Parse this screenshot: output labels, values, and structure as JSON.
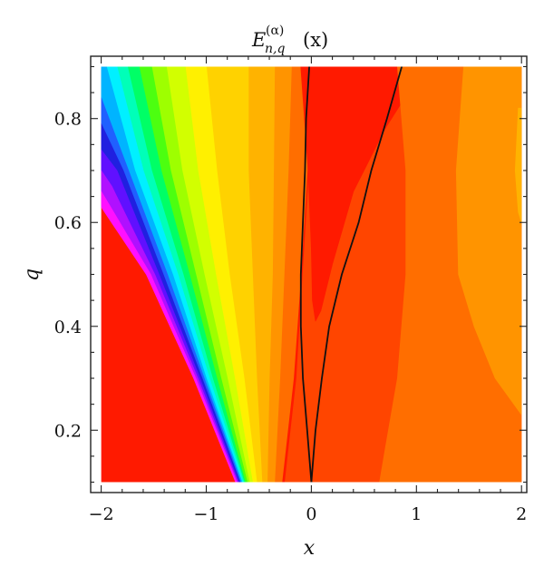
{
  "chart_data": {
    "type": "heatmap",
    "subtype": "filled contour plot with overlaid black contour lines",
    "title": {
      "base": "E",
      "superscript": "(α)",
      "subscript": "n,q",
      "argument": "(x)"
    },
    "xlabel": "x",
    "ylabel": "q",
    "xlim": [
      -2,
      2
    ],
    "ylim": [
      0.1,
      0.9
    ],
    "frame_range": {
      "x": [
        -2.1,
        2.05
      ],
      "y": [
        0.08,
        0.92
      ]
    },
    "x_ticks": [
      {
        "value": -2,
        "label": "−2"
      },
      {
        "value": -1,
        "label": "−1"
      },
      {
        "value": 0,
        "label": "0"
      },
      {
        "value": 1,
        "label": "1"
      },
      {
        "value": 2,
        "label": "2"
      }
    ],
    "y_ticks": [
      {
        "value": 0.2,
        "label": "0.2"
      },
      {
        "value": 0.4,
        "label": "0.4"
      },
      {
        "value": 0.6,
        "label": "0.6"
      },
      {
        "value": 0.8,
        "label": "0.8"
      }
    ],
    "background_color": "#ff1a00",
    "palette": [
      "#ff1a00",
      "#ff4500",
      "#ff6e00",
      "#ff9400",
      "#ffb300",
      "#ffd200",
      "#fff000",
      "#d2ff00",
      "#9eff00",
      "#4cff10",
      "#00ff66",
      "#00ffb8",
      "#00f0ff",
      "#00b4ff",
      "#2060ff",
      "#2020e0",
      "#6010ff",
      "#b010ff",
      "#ff10ff"
    ],
    "regions": [
      {
        "color": "#ff4500",
        "points": [
          [
            -0.25,
            0.1
          ],
          [
            -0.14,
            0.3
          ],
          [
            -0.08,
            0.5
          ],
          [
            -0.02,
            0.7
          ],
          [
            0.02,
            0.9
          ],
          [
            2,
            0.9
          ],
          [
            2,
            0.1
          ]
        ]
      },
      {
        "color": "#ff6e00",
        "points": [
          [
            -0.35,
            0.1
          ],
          [
            -0.3,
            0.3
          ],
          [
            -0.26,
            0.5
          ],
          [
            -0.22,
            0.7
          ],
          [
            -0.19,
            0.9
          ],
          [
            -0.02,
            0.9
          ],
          [
            -0.04,
            0.7
          ],
          [
            -0.1,
            0.5
          ],
          [
            -0.17,
            0.3
          ],
          [
            -0.28,
            0.1
          ]
        ]
      },
      {
        "color": "#ff9400",
        "points": [
          [
            -0.42,
            0.1
          ],
          [
            -0.4,
            0.3
          ],
          [
            -0.37,
            0.5
          ],
          [
            -0.36,
            0.7
          ],
          [
            -0.35,
            0.9
          ],
          [
            -0.19,
            0.9
          ],
          [
            -0.22,
            0.7
          ],
          [
            -0.26,
            0.5
          ],
          [
            -0.3,
            0.3
          ],
          [
            -0.35,
            0.1
          ]
        ]
      },
      {
        "color": "#ffb300",
        "points": [
          [
            -0.47,
            0.1
          ],
          [
            -0.52,
            0.3
          ],
          [
            -0.56,
            0.5
          ],
          [
            -0.6,
            0.7
          ],
          [
            -0.6,
            0.9
          ],
          [
            -0.35,
            0.9
          ],
          [
            -0.36,
            0.7
          ],
          [
            -0.37,
            0.5
          ],
          [
            -0.4,
            0.3
          ],
          [
            -0.42,
            0.1
          ]
        ]
      },
      {
        "color": "#ffd200",
        "points": [
          [
            -0.52,
            0.1
          ],
          [
            -0.64,
            0.3
          ],
          [
            -0.78,
            0.5
          ],
          [
            -0.9,
            0.7
          ],
          [
            -1.0,
            0.9
          ],
          [
            -0.6,
            0.9
          ],
          [
            -0.6,
            0.7
          ],
          [
            -0.56,
            0.5
          ],
          [
            -0.52,
            0.3
          ],
          [
            -0.47,
            0.1
          ]
        ]
      },
      {
        "color": "#fff000",
        "points": [
          [
            -0.56,
            0.1
          ],
          [
            -0.73,
            0.3
          ],
          [
            -0.91,
            0.5
          ],
          [
            -1.08,
            0.7
          ],
          [
            -1.2,
            0.9
          ],
          [
            -1.0,
            0.9
          ],
          [
            -0.9,
            0.7
          ],
          [
            -0.78,
            0.5
          ],
          [
            -0.64,
            0.3
          ],
          [
            -0.52,
            0.1
          ]
        ]
      },
      {
        "color": "#d2ff00",
        "points": [
          [
            -0.59,
            0.1
          ],
          [
            -0.8,
            0.3
          ],
          [
            -1.02,
            0.5
          ],
          [
            -1.23,
            0.7
          ],
          [
            -1.38,
            0.9
          ],
          [
            -1.2,
            0.9
          ],
          [
            -1.08,
            0.7
          ],
          [
            -0.91,
            0.5
          ],
          [
            -0.73,
            0.3
          ],
          [
            -0.56,
            0.1
          ]
        ]
      },
      {
        "color": "#9eff00",
        "points": [
          [
            -0.61,
            0.1
          ],
          [
            -0.86,
            0.3
          ],
          [
            -1.1,
            0.5
          ],
          [
            -1.34,
            0.7
          ],
          [
            -1.52,
            0.9
          ],
          [
            -1.38,
            0.9
          ],
          [
            -1.23,
            0.7
          ],
          [
            -1.02,
            0.5
          ],
          [
            -0.8,
            0.3
          ],
          [
            -0.59,
            0.1
          ]
        ]
      },
      {
        "color": "#4cff10",
        "points": [
          [
            -0.63,
            0.1
          ],
          [
            -0.9,
            0.3
          ],
          [
            -1.16,
            0.5
          ],
          [
            -1.43,
            0.7
          ],
          [
            -1.64,
            0.9
          ],
          [
            -1.52,
            0.9
          ],
          [
            -1.34,
            0.7
          ],
          [
            -1.1,
            0.5
          ],
          [
            -0.86,
            0.3
          ],
          [
            -0.61,
            0.1
          ]
        ]
      },
      {
        "color": "#00ff66",
        "points": [
          [
            -0.64,
            0.1
          ],
          [
            -0.94,
            0.3
          ],
          [
            -1.22,
            0.5
          ],
          [
            -1.52,
            0.7
          ],
          [
            -1.75,
            0.9
          ],
          [
            -1.64,
            0.9
          ],
          [
            -1.43,
            0.7
          ],
          [
            -1.16,
            0.5
          ],
          [
            -0.9,
            0.3
          ],
          [
            -0.63,
            0.1
          ]
        ]
      },
      {
        "color": "#00ffb8",
        "points": [
          [
            -0.65,
            0.1
          ],
          [
            -0.97,
            0.3
          ],
          [
            -1.27,
            0.5
          ],
          [
            -1.6,
            0.7
          ],
          [
            -1.85,
            0.9
          ],
          [
            -1.75,
            0.9
          ],
          [
            -1.52,
            0.7
          ],
          [
            -1.22,
            0.5
          ],
          [
            -0.94,
            0.3
          ],
          [
            -0.64,
            0.1
          ]
        ]
      },
      {
        "color": "#00f0ff",
        "points": [
          [
            -0.66,
            0.1
          ],
          [
            -1.0,
            0.3
          ],
          [
            -1.32,
            0.5
          ],
          [
            -1.68,
            0.7
          ],
          [
            -1.95,
            0.9
          ],
          [
            -1.85,
            0.9
          ],
          [
            -1.6,
            0.7
          ],
          [
            -1.27,
            0.5
          ],
          [
            -0.97,
            0.3
          ],
          [
            -0.65,
            0.1
          ]
        ]
      },
      {
        "color": "#00b4ff",
        "points": [
          [
            -0.67,
            0.1
          ],
          [
            -1.02,
            0.3
          ],
          [
            -1.37,
            0.5
          ],
          [
            -1.74,
            0.7
          ],
          [
            -2,
            0.84
          ],
          [
            -2,
            0.9
          ],
          [
            -1.95,
            0.9
          ],
          [
            -1.68,
            0.7
          ],
          [
            -1.32,
            0.5
          ],
          [
            -1.0,
            0.3
          ],
          [
            -0.66,
            0.1
          ]
        ]
      },
      {
        "color": "#2060ff",
        "points": [
          [
            -0.68,
            0.1
          ],
          [
            -1.04,
            0.3
          ],
          [
            -1.41,
            0.5
          ],
          [
            -1.79,
            0.7
          ],
          [
            -2,
            0.79
          ],
          [
            -2,
            0.84
          ],
          [
            -1.74,
            0.7
          ],
          [
            -1.37,
            0.5
          ],
          [
            -1.02,
            0.3
          ],
          [
            -0.67,
            0.1
          ]
        ]
      },
      {
        "color": "#2020e0",
        "points": [
          [
            -0.69,
            0.1
          ],
          [
            -1.06,
            0.3
          ],
          [
            -1.45,
            0.5
          ],
          [
            -1.85,
            0.7
          ],
          [
            -2,
            0.74
          ],
          [
            -2,
            0.79
          ],
          [
            -1.79,
            0.7
          ],
          [
            -1.41,
            0.5
          ],
          [
            -1.04,
            0.3
          ],
          [
            -0.68,
            0.1
          ]
        ]
      },
      {
        "color": "#6010ff",
        "points": [
          [
            -0.7,
            0.1
          ],
          [
            -1.08,
            0.3
          ],
          [
            -1.49,
            0.5
          ],
          [
            -1.9,
            0.67
          ],
          [
            -2,
            0.7
          ],
          [
            -2,
            0.74
          ],
          [
            -1.85,
            0.7
          ],
          [
            -1.45,
            0.5
          ],
          [
            -1.06,
            0.3
          ],
          [
            -0.69,
            0.1
          ]
        ]
      },
      {
        "color": "#b010ff",
        "points": [
          [
            -0.71,
            0.1
          ],
          [
            -1.1,
            0.3
          ],
          [
            -1.53,
            0.5
          ],
          [
            -2,
            0.66
          ],
          [
            -2,
            0.7
          ],
          [
            -1.9,
            0.67
          ],
          [
            -1.49,
            0.5
          ],
          [
            -1.08,
            0.3
          ],
          [
            -0.7,
            0.1
          ]
        ]
      },
      {
        "color": "#ff10ff",
        "points": [
          [
            -0.72,
            0.1
          ],
          [
            -1.12,
            0.3
          ],
          [
            -1.57,
            0.5
          ],
          [
            -2,
            0.63
          ],
          [
            -2,
            0.66
          ],
          [
            -1.53,
            0.5
          ],
          [
            -1.1,
            0.3
          ],
          [
            -0.71,
            0.1
          ]
        ]
      },
      {
        "color": "#ff1a00",
        "points": [
          [
            -0.1,
            0.9
          ],
          [
            -0.03,
            0.7
          ],
          [
            0.0,
            0.55
          ],
          [
            0.01,
            0.45
          ],
          [
            0.04,
            0.41
          ],
          [
            0.09,
            0.43
          ],
          [
            0.2,
            0.52
          ],
          [
            0.4,
            0.66
          ],
          [
            0.7,
            0.78
          ],
          [
            0.95,
            0.86
          ],
          [
            1.1,
            0.9
          ]
        ]
      },
      {
        "color": "#ff6e00",
        "points": [
          [
            0.65,
            0.1
          ],
          [
            0.7,
            0.16
          ],
          [
            0.82,
            0.3
          ],
          [
            0.9,
            0.5
          ],
          [
            0.9,
            0.7
          ],
          [
            0.82,
            0.9
          ],
          [
            2,
            0.9
          ],
          [
            2,
            0.1
          ]
        ]
      },
      {
        "color": "#ff9400",
        "points": [
          [
            1.45,
            0.9
          ],
          [
            1.38,
            0.7
          ],
          [
            1.4,
            0.5
          ],
          [
            1.55,
            0.4
          ],
          [
            1.75,
            0.3
          ],
          [
            2,
            0.23
          ],
          [
            2,
            0.9
          ]
        ]
      },
      {
        "color": "#ffb300",
        "points": [
          [
            1.97,
            0.82
          ],
          [
            1.94,
            0.7
          ],
          [
            1.97,
            0.62
          ],
          [
            2,
            0.6
          ],
          [
            2,
            0.82
          ]
        ]
      }
    ],
    "contour_lines": [
      {
        "color": "#111111",
        "points": [
          [
            0.0,
            0.1
          ],
          [
            -0.04,
            0.2
          ],
          [
            -0.08,
            0.3
          ],
          [
            -0.1,
            0.4
          ],
          [
            -0.1,
            0.5
          ],
          [
            -0.08,
            0.6
          ],
          [
            -0.06,
            0.7
          ],
          [
            -0.05,
            0.8
          ],
          [
            -0.02,
            0.9
          ]
        ]
      },
      {
        "color": "#111111",
        "points": [
          [
            0.0,
            0.1
          ],
          [
            0.04,
            0.2
          ],
          [
            0.1,
            0.3
          ],
          [
            0.17,
            0.4
          ],
          [
            0.29,
            0.5
          ],
          [
            0.45,
            0.6
          ],
          [
            0.57,
            0.7
          ],
          [
            0.72,
            0.8
          ],
          [
            0.86,
            0.9
          ]
        ]
      }
    ]
  }
}
